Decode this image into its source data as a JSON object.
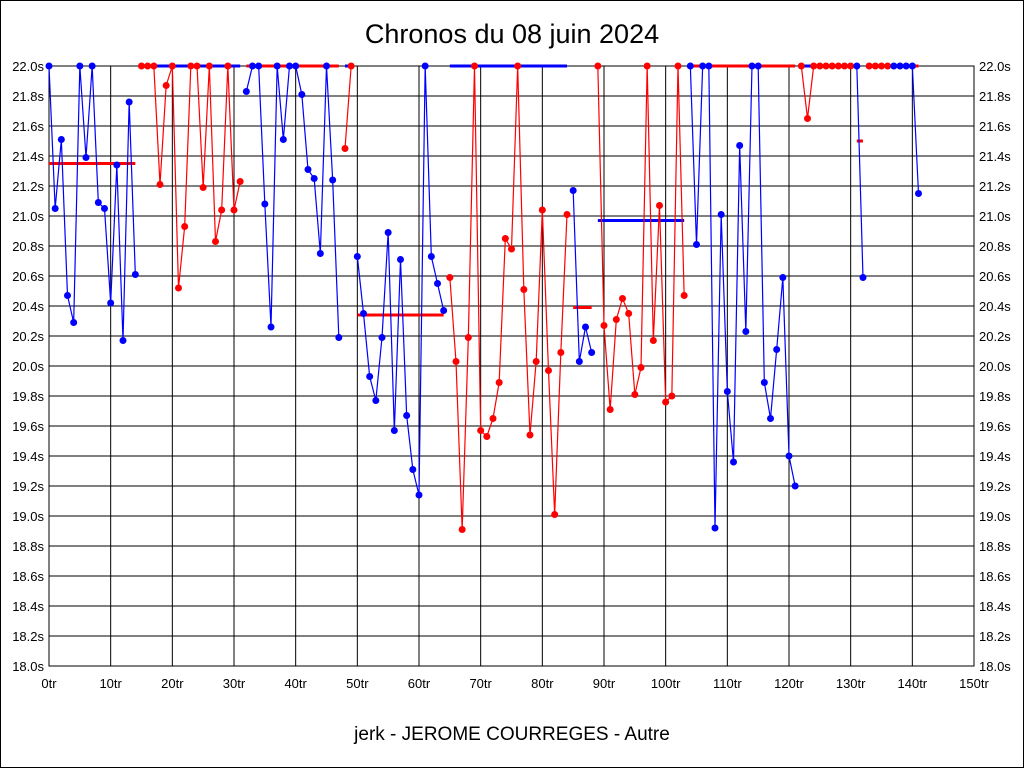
{
  "chart_data": {
    "type": "line",
    "title": "Chronos du 08 juin 2024",
    "xlabel": "jerk - JEROME COURREGES - Autre",
    "ylabel": "",
    "xlim": [
      0,
      150
    ],
    "ylim": [
      18.0,
      22.0
    ],
    "x_ticks": [
      "0tr",
      "10tr",
      "20tr",
      "30tr",
      "40tr",
      "50tr",
      "60tr",
      "70tr",
      "80tr",
      "90tr",
      "100tr",
      "110tr",
      "120tr",
      "130tr",
      "140tr",
      "150tr"
    ],
    "y_ticks": [
      "18.0s",
      "18.2s",
      "18.4s",
      "18.6s",
      "18.8s",
      "19.0s",
      "19.2s",
      "19.4s",
      "19.6s",
      "19.8s",
      "20.0s",
      "20.2s",
      "20.4s",
      "20.6s",
      "20.8s",
      "21.0s",
      "21.2s",
      "21.4s",
      "21.6s",
      "21.8s",
      "22.0s"
    ],
    "grid": true,
    "colors": {
      "blue": "#0000ff",
      "red": "#ff0000"
    },
    "sessions": [
      {
        "color": "blue",
        "start": 0,
        "values": [
          22.0,
          21.05,
          21.51,
          20.47,
          20.29,
          22.0,
          21.39,
          22.0,
          21.09,
          21.05,
          20.42,
          21.34,
          20.17,
          21.76,
          20.61
        ]
      },
      {
        "color": "red",
        "start": 15,
        "values": [
          22.0,
          22.0,
          22.0,
          21.21,
          21.87,
          22.0,
          20.52,
          20.93,
          22.0,
          22.0,
          21.19,
          22.0,
          20.83,
          21.04,
          22.0,
          21.04,
          21.23
        ]
      },
      {
        "color": "blue",
        "start": 32,
        "values": [
          21.83,
          22.0,
          22.0,
          21.08,
          20.26,
          22.0,
          21.51,
          22.0,
          22.0,
          21.81,
          21.31,
          21.25,
          20.75,
          22.0,
          21.24,
          20.19
        ]
      },
      {
        "color": "red",
        "start": 48,
        "values": [
          21.45,
          22.0
        ]
      },
      {
        "color": "blue",
        "start": 50,
        "values": [
          20.73,
          20.35,
          19.93,
          19.77,
          20.19,
          20.89,
          19.57,
          20.71,
          19.67,
          19.31,
          19.14,
          22.0,
          20.73,
          20.55,
          20.37
        ]
      },
      {
        "color": "red",
        "start": 65,
        "values": [
          20.59,
          20.03,
          18.91,
          20.19,
          22.0,
          19.57,
          19.53,
          19.65,
          19.89,
          20.85,
          20.78,
          22.0,
          20.51,
          19.54,
          20.03,
          21.04,
          19.97,
          19.01,
          20.09,
          21.01
        ]
      },
      {
        "color": "blue",
        "start": 85,
        "values": [
          21.17,
          20.03,
          20.26,
          20.09
        ]
      },
      {
        "color": "red",
        "start": 89,
        "values": [
          22.0,
          20.27,
          19.71,
          20.31,
          20.45,
          20.35,
          19.81,
          19.99,
          22.0,
          20.17,
          21.07,
          19.76,
          19.8,
          22.0,
          20.47
        ]
      },
      {
        "color": "blue",
        "start": 104,
        "values": [
          22.0,
          20.81,
          22.0,
          22.0,
          18.92,
          21.01,
          19.83,
          19.36,
          21.47,
          20.23,
          22.0,
          22.0,
          19.89,
          19.65,
          20.11,
          20.59,
          19.4,
          19.2
        ]
      },
      {
        "color": "red",
        "start": 122,
        "values": [
          22.0,
          21.65,
          22.0,
          22.0,
          22.0,
          22.0,
          22.0,
          22.0,
          22.0
        ]
      },
      {
        "color": "blue",
        "start": 131,
        "values": [
          22.0,
          20.59
        ]
      },
      {
        "color": "red",
        "start": 133,
        "values": [
          22.0,
          22.0,
          22.0,
          22.0
        ]
      },
      {
        "color": "blue",
        "start": 137,
        "values": [
          22.0,
          22.0,
          22.0,
          22.0,
          21.15
        ]
      }
    ],
    "averages": [
      {
        "color": "red",
        "from": 0,
        "to": 14,
        "value": 21.35
      },
      {
        "color": "blue",
        "from": 15,
        "to": 31,
        "value": 22.0
      },
      {
        "color": "red",
        "from": 32,
        "to": 47,
        "value": 22.0
      },
      {
        "color": "blue",
        "from": 48,
        "to": 49,
        "value": 22.0
      },
      {
        "color": "red",
        "from": 50,
        "to": 64,
        "value": 20.34
      },
      {
        "color": "blue",
        "from": 65,
        "to": 84,
        "value": 22.0
      },
      {
        "color": "red",
        "from": 85,
        "to": 88,
        "value": 20.39
      },
      {
        "color": "blue",
        "from": 89,
        "to": 103,
        "value": 20.97
      },
      {
        "color": "red",
        "from": 104,
        "to": 121,
        "value": 22.0
      },
      {
        "color": "blue",
        "from": 122,
        "to": 130,
        "value": 22.0
      },
      {
        "color": "red",
        "from": 131,
        "to": 132,
        "value": 21.5
      },
      {
        "color": "blue",
        "from": 133,
        "to": 136,
        "value": 22.0
      },
      {
        "color": "red",
        "from": 137,
        "to": 141,
        "value": 22.0
      }
    ]
  }
}
